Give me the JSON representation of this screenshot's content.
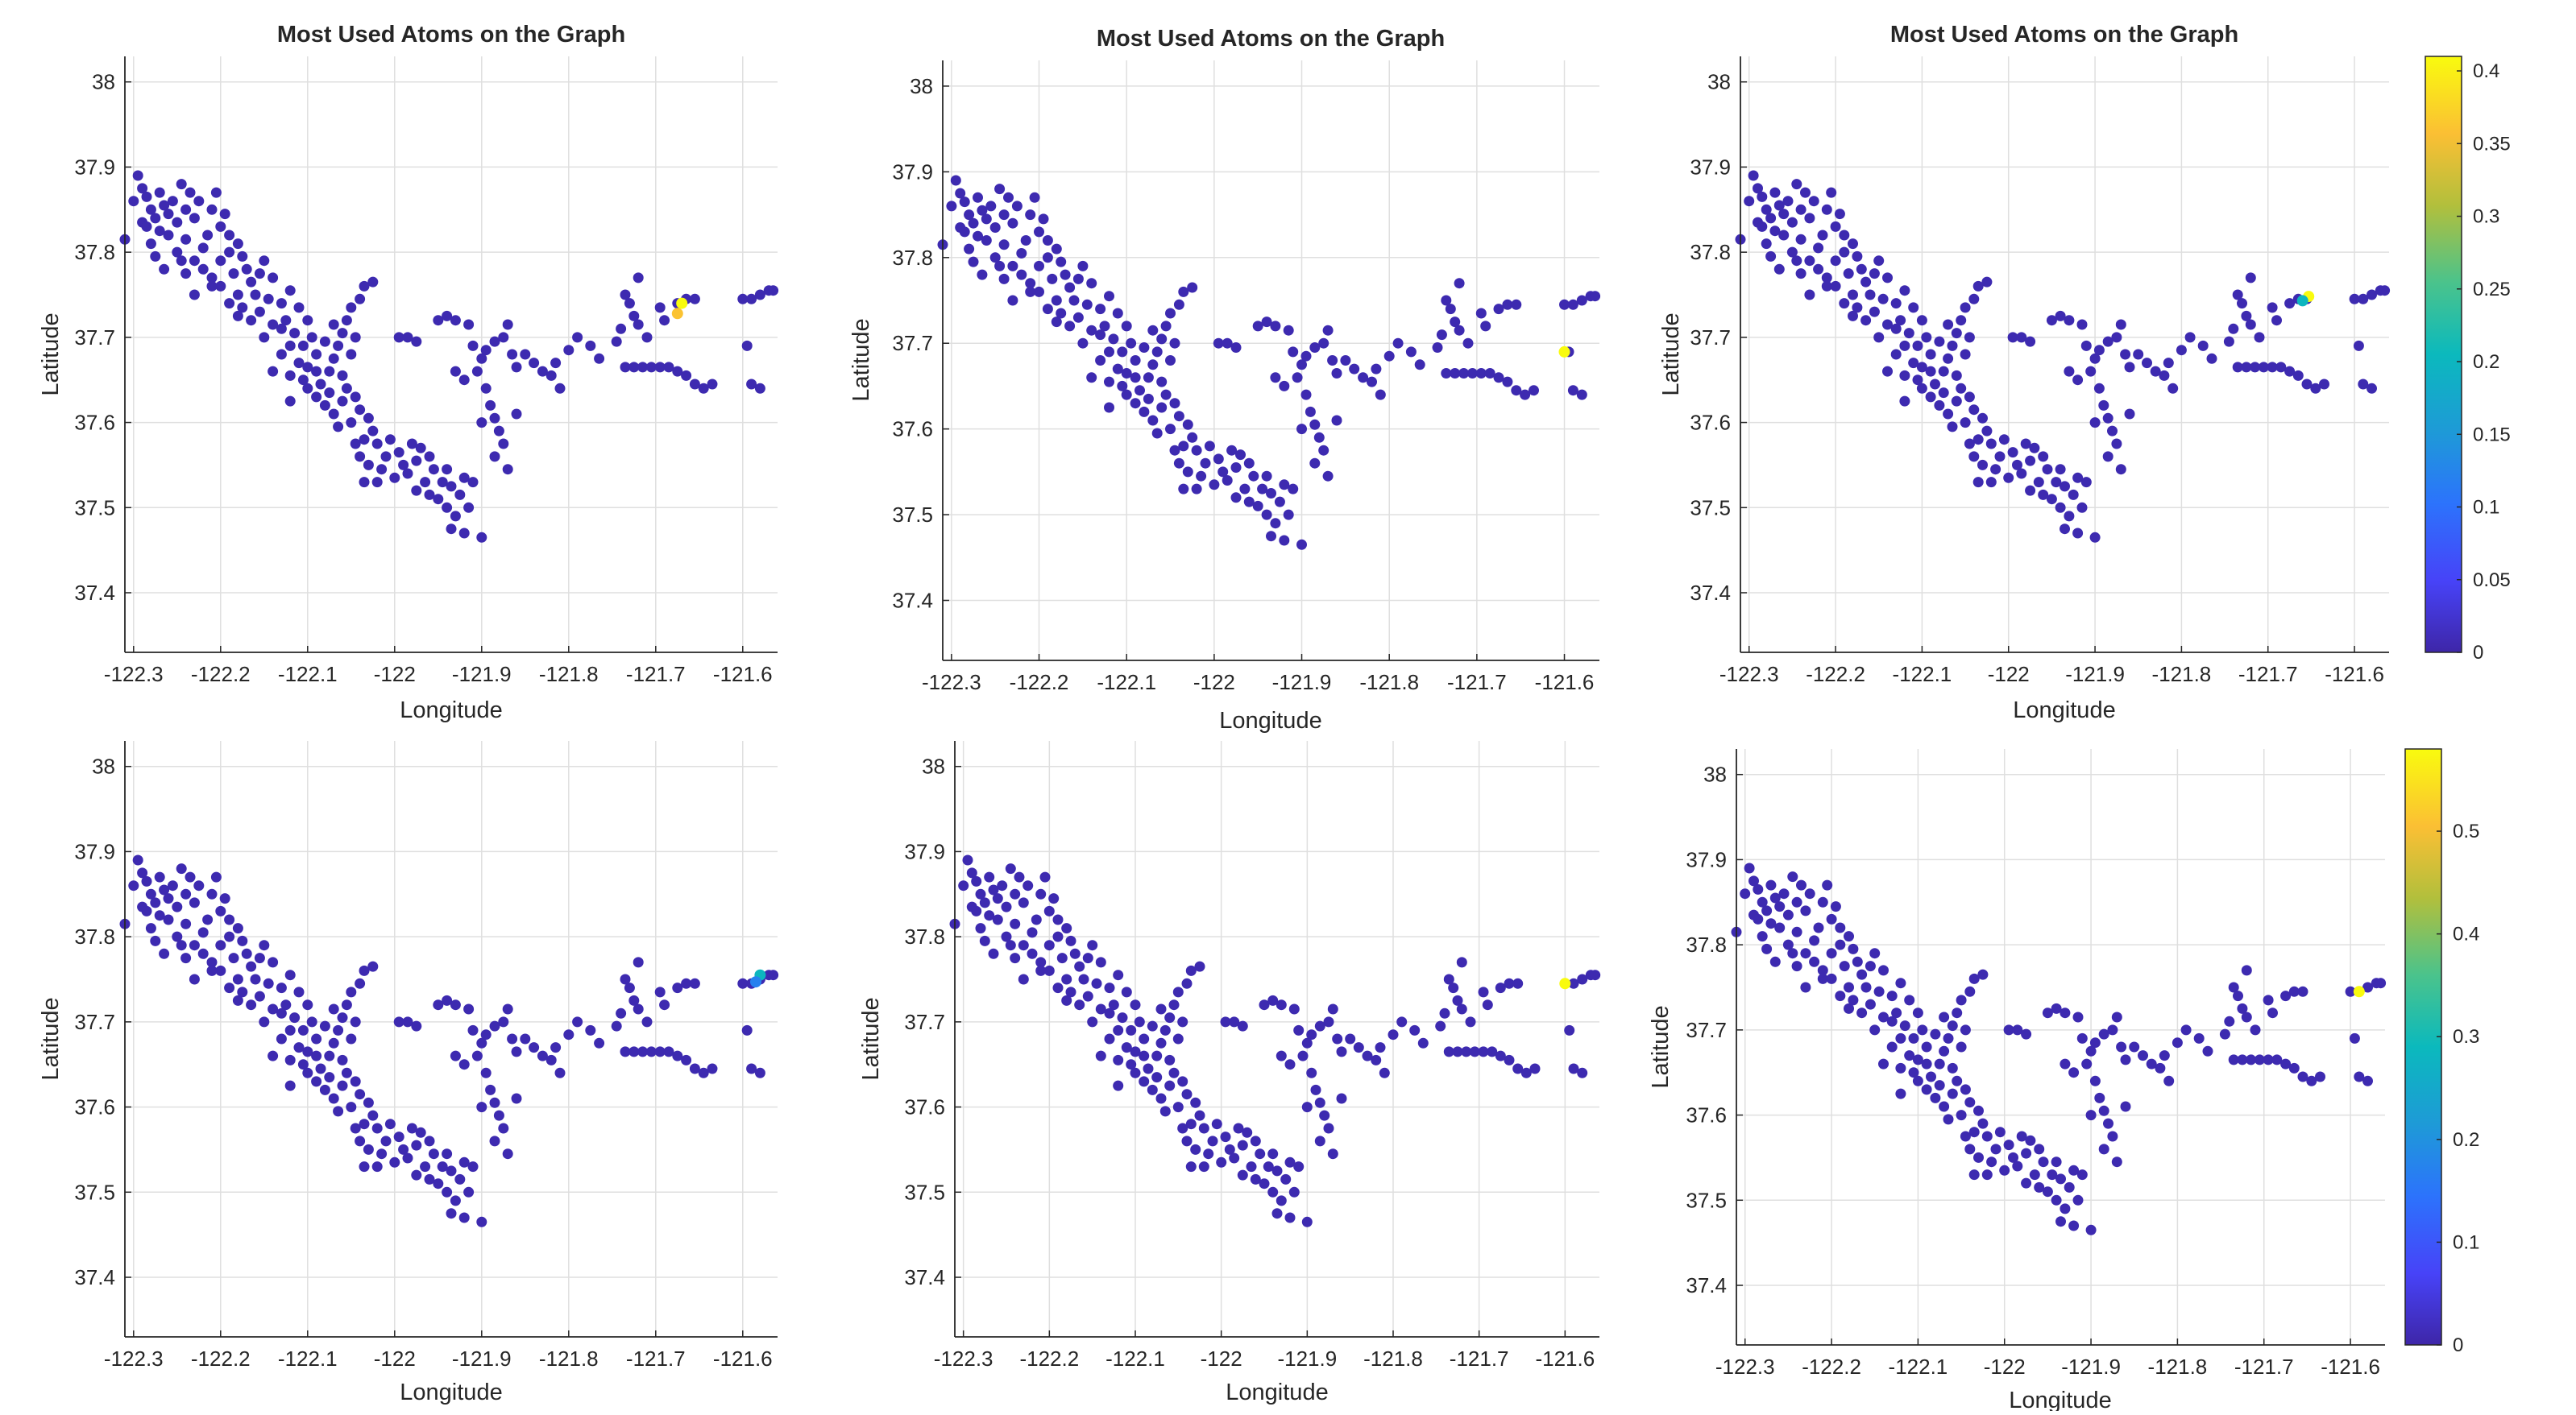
{
  "chart_data": [
    {
      "type": "scatter",
      "title": "Most Used Atoms on the Graph",
      "xlabel": "Longitude",
      "ylabel": "Latitude",
      "xlim": [
        -122.31,
        -121.56
      ],
      "ylim": [
        37.33,
        38.03
      ],
      "x_ticks": [
        "-122.3",
        "-122.2",
        "-122.1",
        "-122",
        "-121.9",
        "-121.8",
        "-121.7",
        "-121.6"
      ],
      "y_ticks": [
        "37.4",
        "37.5",
        "37.6",
        "37.7",
        "37.8",
        "37.9",
        "38"
      ],
      "grid": true,
      "highlight": [
        {
          "x": -121.67,
          "y": 37.74,
          "value": 0.41
        },
        {
          "x": -121.675,
          "y": 37.728,
          "value": 0.36
        }
      ]
    },
    {
      "type": "scatter",
      "title": "Most Used Atoms on the Graph",
      "xlabel": "Longitude",
      "ylabel": "Latitude",
      "xlim": [
        -122.31,
        -121.56
      ],
      "ylim": [
        37.33,
        38.03
      ],
      "x_ticks": [
        "-122.3",
        "-122.2",
        "-122.1",
        "-122",
        "-121.9",
        "-121.8",
        "-121.7",
        "-121.6"
      ],
      "y_ticks": [
        "37.4",
        "37.5",
        "37.6",
        "37.7",
        "37.8",
        "37.9",
        "38"
      ],
      "grid": true,
      "highlight": [
        {
          "x": -121.6,
          "y": 37.69,
          "value": 0.41
        }
      ]
    },
    {
      "type": "scatter",
      "title": "Most Used Atoms on the Graph",
      "xlabel": "Longitude",
      "ylabel": "Latitude",
      "xlim": [
        -122.31,
        -121.56
      ],
      "ylim": [
        37.33,
        38.03
      ],
      "x_ticks": [
        "-122.3",
        "-122.2",
        "-122.1",
        "-122",
        "-121.9",
        "-121.8",
        "-121.7",
        "-121.6"
      ],
      "y_ticks": [
        "37.4",
        "37.5",
        "37.6",
        "37.7",
        "37.8",
        "37.9",
        "38"
      ],
      "grid": true,
      "highlight": [
        {
          "x": -121.653,
          "y": 37.748,
          "value": 0.41
        },
        {
          "x": -121.66,
          "y": 37.743,
          "value": 0.2
        }
      ],
      "colorbar": {
        "range": [
          0,
          0.41
        ],
        "ticks": [
          "0",
          "0.05",
          "0.1",
          "0.15",
          "0.2",
          "0.25",
          "0.3",
          "0.35",
          "0.4"
        ],
        "colormap": "parula"
      }
    },
    {
      "type": "scatter",
      "title": "",
      "xlabel": "Longitude",
      "ylabel": "Latitude",
      "xlim": [
        -122.31,
        -121.56
      ],
      "ylim": [
        37.33,
        38.03
      ],
      "x_ticks": [
        "-122.3",
        "-122.2",
        "-122.1",
        "-122",
        "-121.9",
        "-121.8",
        "-121.7",
        "-121.6"
      ],
      "y_ticks": [
        "37.4",
        "37.5",
        "37.6",
        "37.7",
        "37.8",
        "37.9",
        "38"
      ],
      "grid": true,
      "highlight": [
        {
          "x": -121.58,
          "y": 37.755,
          "value": 0.2
        },
        {
          "x": -121.585,
          "y": 37.747,
          "value": 0.12
        }
      ]
    },
    {
      "type": "scatter",
      "title": "",
      "xlabel": "Longitude",
      "ylabel": "Latitude",
      "xlim": [
        -122.31,
        -121.56
      ],
      "ylim": [
        37.33,
        38.03
      ],
      "x_ticks": [
        "-122.3",
        "-122.2",
        "-122.1",
        "-122",
        "-121.9",
        "-121.8",
        "-121.7",
        "-121.6"
      ],
      "y_ticks": [
        "37.4",
        "37.5",
        "37.6",
        "37.7",
        "37.8",
        "37.9",
        "38"
      ],
      "grid": true,
      "highlight": [
        {
          "x": -121.6,
          "y": 37.745,
          "value": 0.41
        }
      ]
    },
    {
      "type": "scatter",
      "title": "",
      "xlabel": "Longitude",
      "ylabel": "Latitude",
      "xlim": [
        -122.31,
        -121.56
      ],
      "ylim": [
        37.33,
        38.03
      ],
      "x_ticks": [
        "-122.3",
        "-122.2",
        "-122.1",
        "-122",
        "-121.9",
        "-121.8",
        "-121.7",
        "-121.6"
      ],
      "y_ticks": [
        "37.4",
        "37.5",
        "37.6",
        "37.7",
        "37.8",
        "37.9",
        "38"
      ],
      "grid": true,
      "highlight": [
        {
          "x": -121.59,
          "y": 37.745,
          "value": 0.58
        }
      ],
      "colorbar": {
        "range": [
          0,
          0.58
        ],
        "ticks": [
          "0",
          "0.1",
          "0.2",
          "0.3",
          "0.4",
          "0.5"
        ],
        "colormap": "parula"
      }
    }
  ],
  "base_points": [
    [
      -122.31,
      37.815
    ],
    [
      -122.295,
      37.89
    ],
    [
      -122.29,
      37.875
    ],
    [
      -122.3,
      37.86
    ],
    [
      -122.285,
      37.865
    ],
    [
      -122.28,
      37.85
    ],
    [
      -122.275,
      37.84
    ],
    [
      -122.29,
      37.835
    ],
    [
      -122.285,
      37.83
    ],
    [
      -122.27,
      37.87
    ],
    [
      -122.265,
      37.855
    ],
    [
      -122.26,
      37.845
    ],
    [
      -122.255,
      37.86
    ],
    [
      -122.25,
      37.835
    ],
    [
      -122.27,
      37.825
    ],
    [
      -122.245,
      37.88
    ],
    [
      -122.24,
      37.85
    ],
    [
      -122.235,
      37.87
    ],
    [
      -122.23,
      37.84
    ],
    [
      -122.225,
      37.86
    ],
    [
      -122.26,
      37.82
    ],
    [
      -122.28,
      37.81
    ],
    [
      -122.275,
      37.795
    ],
    [
      -122.265,
      37.78
    ],
    [
      -122.25,
      37.8
    ],
    [
      -122.24,
      37.815
    ],
    [
      -122.23,
      37.79
    ],
    [
      -122.22,
      37.805
    ],
    [
      -122.215,
      37.82
    ],
    [
      -122.2,
      37.83
    ],
    [
      -122.21,
      37.85
    ],
    [
      -122.205,
      37.87
    ],
    [
      -122.195,
      37.845
    ],
    [
      -122.19,
      37.82
    ],
    [
      -122.22,
      37.78
    ],
    [
      -122.21,
      37.77
    ],
    [
      -122.2,
      37.79
    ],
    [
      -122.19,
      37.8
    ],
    [
      -122.18,
      37.81
    ],
    [
      -122.175,
      37.795
    ],
    [
      -122.2,
      37.76
    ],
    [
      -122.185,
      37.775
    ],
    [
      -122.17,
      37.78
    ],
    [
      -122.165,
      37.765
    ],
    [
      -122.18,
      37.75
    ],
    [
      -122.19,
      37.74
    ],
    [
      -122.175,
      37.735
    ],
    [
      -122.16,
      37.75
    ],
    [
      -122.155,
      37.775
    ],
    [
      -122.15,
      37.79
    ],
    [
      -122.14,
      37.77
    ],
    [
      -122.145,
      37.745
    ],
    [
      -122.155,
      37.73
    ],
    [
      -122.13,
      37.74
    ],
    [
      -122.125,
      37.72
    ],
    [
      -122.12,
      37.755
    ],
    [
      -122.11,
      37.735
    ],
    [
      -122.1,
      37.72
    ],
    [
      -122.095,
      37.7
    ],
    [
      -122.105,
      37.69
    ],
    [
      -122.115,
      37.705
    ],
    [
      -122.13,
      37.71
    ],
    [
      -122.14,
      37.715
    ],
    [
      -122.15,
      37.7
    ],
    [
      -122.09,
      37.68
    ],
    [
      -122.1,
      37.665
    ],
    [
      -122.11,
      37.67
    ],
    [
      -122.12,
      37.655
    ],
    [
      -122.105,
      37.65
    ],
    [
      -122.09,
      37.66
    ],
    [
      -122.085,
      37.645
    ],
    [
      -122.075,
      37.66
    ],
    [
      -122.07,
      37.675
    ],
    [
      -122.08,
      37.695
    ],
    [
      -122.065,
      37.69
    ],
    [
      -122.06,
      37.705
    ],
    [
      -122.07,
      37.715
    ],
    [
      -122.055,
      37.72
    ],
    [
      -122.05,
      37.735
    ],
    [
      -122.04,
      37.745
    ],
    [
      -122.035,
      37.76
    ],
    [
      -122.025,
      37.765
    ],
    [
      -122.045,
      37.7
    ],
    [
      -122.05,
      37.68
    ],
    [
      -122.06,
      37.655
    ],
    [
      -122.075,
      37.635
    ],
    [
      -122.08,
      37.62
    ],
    [
      -122.07,
      37.61
    ],
    [
      -122.06,
      37.625
    ],
    [
      -122.055,
      37.64
    ],
    [
      -122.045,
      37.63
    ],
    [
      -122.04,
      37.615
    ],
    [
      -122.05,
      37.6
    ],
    [
      -122.065,
      37.595
    ],
    [
      -122.03,
      37.605
    ],
    [
      -122.025,
      37.59
    ],
    [
      -122.035,
      37.58
    ],
    [
      -122.045,
      37.575
    ],
    [
      -122.02,
      37.575
    ],
    [
      -122.01,
      37.56
    ],
    [
      -122.015,
      37.545
    ],
    [
      -122.03,
      37.55
    ],
    [
      -122.04,
      37.56
    ],
    [
      -122.005,
      37.58
    ],
    [
      -121.995,
      37.565
    ],
    [
      -121.99,
      37.55
    ],
    [
      -122.0,
      37.535
    ],
    [
      -122.02,
      37.53
    ],
    [
      -122.035,
      37.53
    ],
    [
      -121.985,
      37.54
    ],
    [
      -121.975,
      37.555
    ],
    [
      -121.97,
      37.57
    ],
    [
      -121.98,
      37.575
    ],
    [
      -121.96,
      37.56
    ],
    [
      -121.955,
      37.545
    ],
    [
      -121.965,
      37.53
    ],
    [
      -121.975,
      37.52
    ],
    [
      -121.96,
      37.515
    ],
    [
      -121.945,
      37.53
    ],
    [
      -121.94,
      37.545
    ],
    [
      -121.935,
      37.525
    ],
    [
      -121.95,
      37.51
    ],
    [
      -121.94,
      37.5
    ],
    [
      -121.93,
      37.49
    ],
    [
      -121.935,
      37.475
    ],
    [
      -121.92,
      37.47
    ],
    [
      -121.915,
      37.5
    ],
    [
      -121.925,
      37.515
    ],
    [
      -121.92,
      37.535
    ],
    [
      -121.91,
      37.53
    ],
    [
      -121.9,
      37.465
    ],
    [
      -122.12,
      37.625
    ],
    [
      -122.09,
      37.63
    ],
    [
      -122.1,
      37.64
    ],
    [
      -122.14,
      37.66
    ],
    [
      -122.13,
      37.68
    ],
    [
      -122.12,
      37.69
    ],
    [
      -122.165,
      37.72
    ],
    [
      -122.18,
      37.725
    ],
    [
      -122.21,
      37.76
    ],
    [
      -122.23,
      37.75
    ],
    [
      -122.24,
      37.775
    ],
    [
      -122.245,
      37.79
    ],
    [
      -121.995,
      37.7
    ],
    [
      -121.985,
      37.7
    ],
    [
      -121.975,
      37.695
    ],
    [
      -121.95,
      37.72
    ],
    [
      -121.94,
      37.725
    ],
    [
      -121.93,
      37.72
    ],
    [
      -121.915,
      37.715
    ],
    [
      -121.91,
      37.69
    ],
    [
      -121.9,
      37.675
    ],
    [
      -121.905,
      37.66
    ],
    [
      -121.895,
      37.64
    ],
    [
      -121.89,
      37.62
    ],
    [
      -121.885,
      37.605
    ],
    [
      -121.9,
      37.6
    ],
    [
      -121.88,
      37.59
    ],
    [
      -121.875,
      37.575
    ],
    [
      -121.885,
      37.56
    ],
    [
      -121.87,
      37.545
    ],
    [
      -121.895,
      37.685
    ],
    [
      -121.885,
      37.695
    ],
    [
      -121.875,
      37.7
    ],
    [
      -121.87,
      37.715
    ],
    [
      -121.865,
      37.68
    ],
    [
      -121.86,
      37.665
    ],
    [
      -121.85,
      37.68
    ],
    [
      -121.84,
      37.67
    ],
    [
      -121.83,
      37.66
    ],
    [
      -121.82,
      37.655
    ],
    [
      -121.815,
      37.67
    ],
    [
      -121.81,
      37.64
    ],
    [
      -121.8,
      37.685
    ],
    [
      -121.79,
      37.7
    ],
    [
      -121.775,
      37.69
    ],
    [
      -121.765,
      37.675
    ],
    [
      -121.86,
      37.61
    ],
    [
      -121.92,
      37.65
    ],
    [
      -121.93,
      37.66
    ],
    [
      -121.745,
      37.695
    ],
    [
      -121.74,
      37.71
    ],
    [
      -121.735,
      37.75
    ],
    [
      -121.73,
      37.74
    ],
    [
      -121.725,
      37.725
    ],
    [
      -121.72,
      37.715
    ],
    [
      -121.72,
      37.77
    ],
    [
      -121.71,
      37.7
    ],
    [
      -121.735,
      37.665
    ],
    [
      -121.725,
      37.665
    ],
    [
      -121.715,
      37.665
    ],
    [
      -121.705,
      37.665
    ],
    [
      -121.695,
      37.665
    ],
    [
      -121.685,
      37.665
    ],
    [
      -121.675,
      37.66
    ],
    [
      -121.665,
      37.655
    ],
    [
      -121.655,
      37.645
    ],
    [
      -121.645,
      37.64
    ],
    [
      -121.635,
      37.645
    ],
    [
      -121.695,
      37.735
    ],
    [
      -121.69,
      37.72
    ],
    [
      -121.675,
      37.74
    ],
    [
      -121.665,
      37.745
    ],
    [
      -121.655,
      37.745
    ],
    [
      -121.6,
      37.745
    ],
    [
      -121.59,
      37.745
    ],
    [
      -121.58,
      37.75
    ],
    [
      -121.57,
      37.755
    ],
    [
      -121.565,
      37.755
    ],
    [
      -121.595,
      37.69
    ],
    [
      -121.59,
      37.645
    ],
    [
      -121.58,
      37.64
    ]
  ]
}
